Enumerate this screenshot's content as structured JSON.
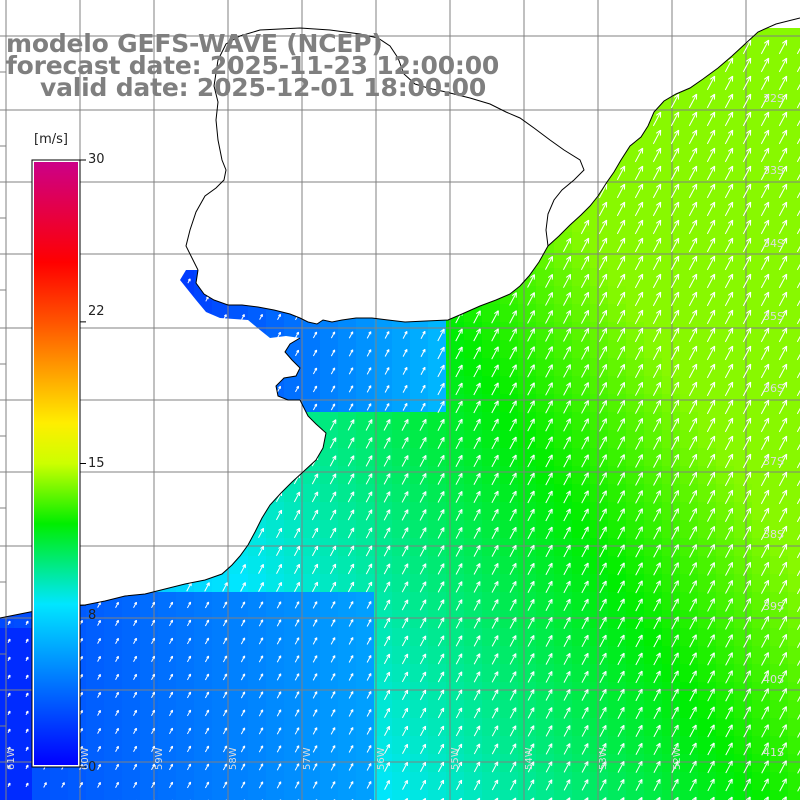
{
  "header": {
    "title_line1": "modelo GEFS-WAVE (NCEP)",
    "title_line2": "forecast date: 2025-11-23 12:00:00",
    "title_line3": "    valid date: 2025-12-01 18:00:00"
  },
  "colorbar": {
    "unit": "[m/s]",
    "ticks": [
      "30",
      "22",
      "15",
      "8",
      "0"
    ],
    "min": 0,
    "max": 30,
    "stops": [
      {
        "value": 0,
        "color": "#0000ff"
      },
      {
        "value": 8,
        "color": "#00e6ff"
      },
      {
        "value": 12,
        "color": "#00ee00"
      },
      {
        "value": 15,
        "color": "#ccff00"
      },
      {
        "value": 17,
        "color": "#ffee00"
      },
      {
        "value": 22,
        "color": "#ff5500"
      },
      {
        "value": 25,
        "color": "#ff0000"
      },
      {
        "value": 30,
        "color": "#cc0088"
      }
    ]
  },
  "map": {
    "lat_labels": [
      "32S",
      "33S",
      "34S",
      "35S",
      "36S",
      "37S",
      "38S",
      "39S",
      "40S",
      "41S"
    ],
    "lon_labels": [
      "61W",
      "60W",
      "59W",
      "58W",
      "57W",
      "56W",
      "55W",
      "54W",
      "53W",
      "52W"
    ],
    "grid_color": "#808080",
    "coast_color": "#000000",
    "land_color": "#ffffff",
    "arrow_color": "#ffffff"
  }
}
